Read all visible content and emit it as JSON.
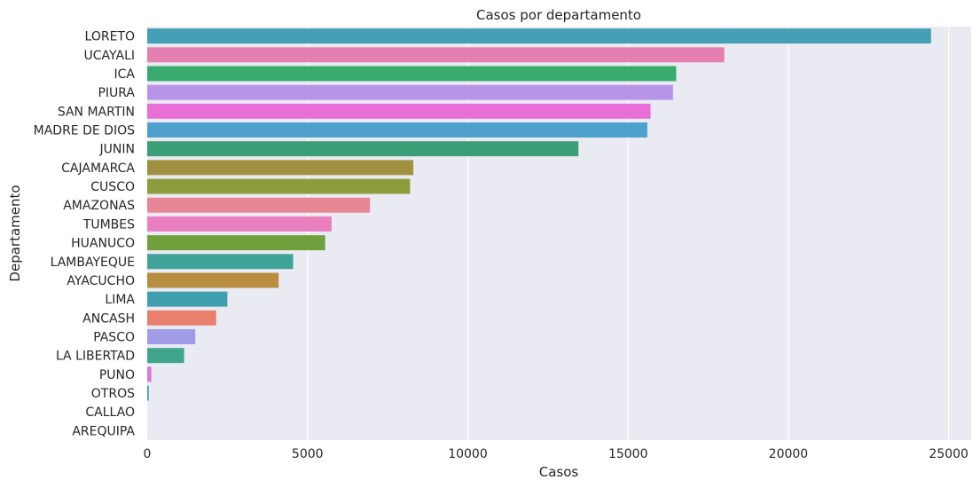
{
  "chart_data": {
    "type": "bar",
    "orientation": "horizontal",
    "title": "Casos por departamento",
    "xlabel": "Casos",
    "ylabel": "Departamento",
    "xlim": [
      0,
      25700
    ],
    "xticks": [
      0,
      5000,
      10000,
      15000,
      20000,
      25000
    ],
    "grid": true,
    "background": "#eaeaf2",
    "grid_color": "#ffffff",
    "categories": [
      "LORETO",
      "UCAYALI",
      "ICA",
      "PIURA",
      "SAN MARTIN",
      "MADRE DE DIOS",
      "JUNIN",
      "CAJAMARCA",
      "CUSCO",
      "AMAZONAS",
      "TUMBES",
      "HUANUCO",
      "LAMBAYEQUE",
      "AYACUCHO",
      "LIMA",
      "ANCASH",
      "PASCO",
      "LA LIBERTAD",
      "PUNO",
      "OTROS",
      "CALLAO",
      "AREQUIPA"
    ],
    "values": [
      24450,
      18000,
      16500,
      16400,
      15700,
      15600,
      13450,
      8300,
      8200,
      6950,
      5750,
      5550,
      4550,
      4100,
      2500,
      2150,
      1500,
      1150,
      130,
      50,
      0,
      0
    ],
    "colors": [
      "#45a0b6",
      "#e57fb2",
      "#3aab6e",
      "#b894e8",
      "#e96fd8",
      "#4da0cc",
      "#3a9f77",
      "#a09140",
      "#8f9c3e",
      "#e98695",
      "#e97fbe",
      "#6ea03c",
      "#3fa39a",
      "#b88d3f",
      "#3f9fae",
      "#e9806d",
      "#a19ce8",
      "#3fa68b",
      "#d779d6",
      "#4aa3bb",
      "#a3a03e",
      "#d0889a"
    ]
  }
}
